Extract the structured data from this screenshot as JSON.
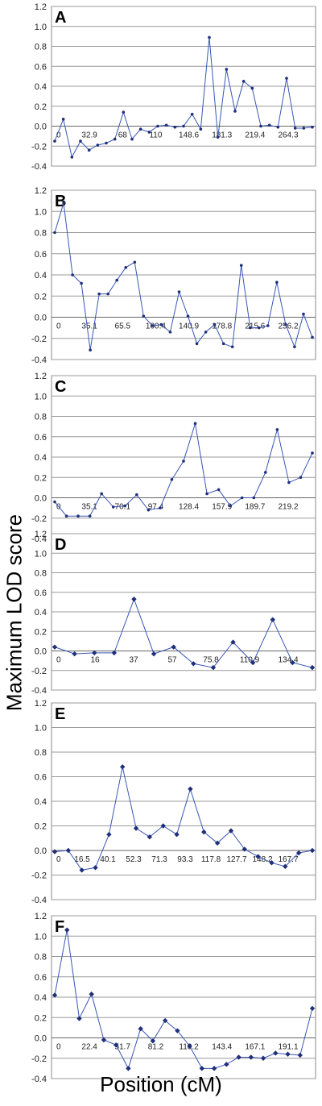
{
  "ylabel": "Maximum LOD score",
  "xlabel": "Position (cM)",
  "chart_data": [
    {
      "type": "line",
      "panel": "A",
      "ylim": [
        -0.4,
        1.2
      ],
      "y_ticks": [
        "1.2",
        "1.0",
        "0.8",
        "0.6",
        "0.4",
        "0.2",
        "0.0",
        "-0.2",
        "-0.4"
      ],
      "x_tick_labels": [
        "0",
        "32.9",
        "68",
        "110",
        "148.6",
        "181.3",
        "219.4",
        "264.3"
      ],
      "grid": true,
      "series": [
        {
          "color": "#3a56b5",
          "marker": "dot",
          "values": [
            -0.15,
            0.07,
            -0.31,
            -0.15,
            -0.24,
            -0.19,
            -0.17,
            -0.13,
            0.14,
            -0.13,
            -0.03,
            -0.06,
            0.0,
            0.01,
            -0.01,
            0.0,
            0.12,
            -0.03,
            0.89,
            -0.11,
            0.57,
            0.15,
            0.45,
            0.38,
            0.0,
            0.01,
            -0.01,
            0.48,
            -0.02,
            -0.02,
            -0.01
          ]
        }
      ]
    },
    {
      "type": "line",
      "panel": "B",
      "ylim": [
        -0.4,
        1.2
      ],
      "y_ticks": [
        "1.2",
        "1.0",
        "0.8",
        "0.6",
        "0.4",
        "0.2",
        "0.0",
        "-0.2",
        "-0.4"
      ],
      "x_tick_labels": [
        "0",
        "35.1",
        "65.5",
        "100.4",
        "140.9",
        "178.8",
        "215.6",
        "256.2"
      ],
      "grid": true,
      "series": [
        {
          "color": "#3a56b5",
          "marker": "dot",
          "values": [
            0.8,
            1.08,
            0.4,
            0.32,
            -0.31,
            0.22,
            0.22,
            0.35,
            0.47,
            0.52,
            0.01,
            -0.08,
            -0.07,
            -0.14,
            0.24,
            0.01,
            -0.25,
            -0.14,
            -0.07,
            -0.25,
            -0.28,
            0.49,
            -0.1,
            -0.1,
            -0.08,
            0.33,
            -0.07,
            -0.28,
            0.03,
            -0.19
          ]
        }
      ]
    },
    {
      "type": "line",
      "panel": "C",
      "ylim": [
        -0.4,
        1.2
      ],
      "y_ticks": [
        "1.2",
        "1.0",
        "0.8",
        "0.6",
        "0.4",
        "0.2",
        "0.0",
        "-0.2",
        "-0.4"
      ],
      "x_tick_labels": [
        "0",
        "35.1",
        "70.1",
        "97.4",
        "128.4",
        "157.9",
        "189.7",
        "219.2"
      ],
      "grid": true,
      "series": [
        {
          "color": "#3a56b5",
          "marker": "dot",
          "values": [
            -0.04,
            -0.18,
            -0.18,
            -0.18,
            0.04,
            -0.09,
            -0.08,
            0.03,
            -0.12,
            -0.1,
            0.18,
            0.36,
            0.73,
            0.04,
            0.08,
            -0.08,
            0.0,
            0.0,
            0.25,
            0.67,
            0.15,
            0.2,
            0.44
          ]
        }
      ]
    },
    {
      "type": "line",
      "panel": "D",
      "ylim": [
        -0.4,
        1.2
      ],
      "y_ticks": [
        "1.2",
        "1.0",
        "0.8",
        "0.6",
        "0.4",
        "0.2",
        "0.0",
        "-0.2",
        "-0.4"
      ],
      "x_tick_labels": [
        "0",
        "16",
        "37",
        "57",
        "75.8",
        "110.9",
        "134.4"
      ],
      "grid": true,
      "series": [
        {
          "color": "#3a56b5",
          "marker": "diamond",
          "values": [
            0.04,
            -0.03,
            -0.02,
            -0.02,
            0.53,
            -0.03,
            0.04,
            -0.13,
            -0.17,
            0.09,
            -0.12,
            0.32,
            -0.12,
            -0.17
          ]
        }
      ]
    },
    {
      "type": "line",
      "panel": "E",
      "ylim": [
        -0.4,
        1.2
      ],
      "y_ticks": [
        "1.2",
        "1.0",
        "0.8",
        "0.6",
        "0.4",
        "0.2",
        "0.0",
        "-0.2",
        "-0.4"
      ],
      "x_tick_labels": [
        "0",
        "16.5",
        "40.1",
        "52.3",
        "71.3",
        "93.3",
        "117.8",
        "127.7",
        "148.2",
        "167.7"
      ],
      "grid": true,
      "series": [
        {
          "color": "#3a56b5",
          "marker": "diamond",
          "values": [
            -0.01,
            0.0,
            -0.16,
            -0.14,
            0.13,
            0.68,
            0.18,
            0.11,
            0.2,
            0.13,
            0.5,
            0.15,
            0.06,
            0.16,
            0.01,
            -0.05,
            -0.1,
            -0.13,
            -0.02,
            0.0
          ]
        }
      ]
    },
    {
      "type": "line",
      "panel": "F",
      "ylim": [
        -0.4,
        1.2
      ],
      "y_ticks": [
        "1.2",
        "1.0",
        "0.8",
        "0.6",
        "0.4",
        "0.2",
        "0.0",
        "-0.2",
        "-0.4"
      ],
      "x_tick_labels": [
        "0",
        "22.4",
        "51.7",
        "81.2",
        "110.2",
        "143.4",
        "167.1",
        "191.1"
      ],
      "grid": true,
      "series": [
        {
          "color": "#3a56b5",
          "marker": "diamond",
          "values": [
            0.42,
            1.06,
            0.19,
            0.43,
            -0.02,
            -0.07,
            -0.3,
            0.09,
            -0.03,
            0.17,
            0.07,
            -0.08,
            -0.3,
            -0.3,
            -0.26,
            -0.19,
            -0.19,
            -0.2,
            -0.15,
            -0.16,
            -0.17,
            0.29
          ]
        }
      ]
    }
  ]
}
